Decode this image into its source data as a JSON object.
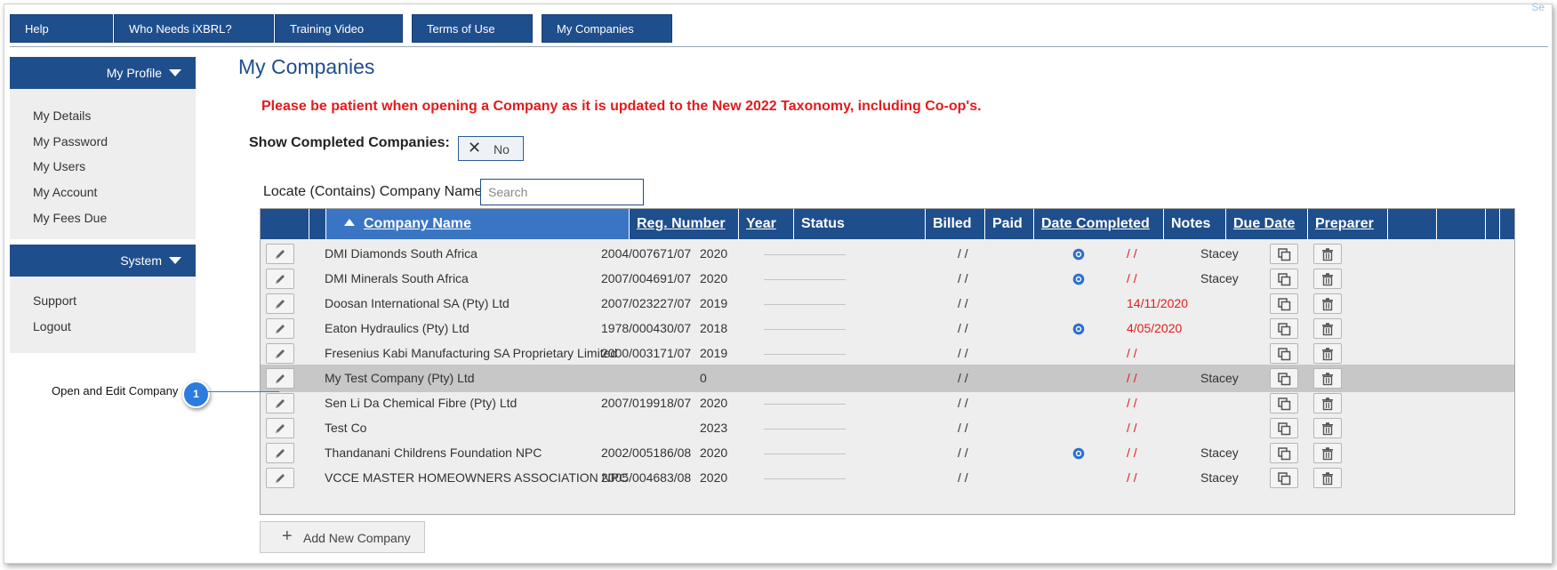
{
  "top_nav": [
    "Help",
    "Who Needs iXBRL?",
    "Training Video",
    "Terms of Use",
    "My Companies"
  ],
  "corner_text": "Se",
  "sidebar": {
    "profile_header": "My Profile",
    "profile_items": [
      "My Details",
      "My Password",
      "My Users",
      "My Account",
      "My Fees Due"
    ],
    "system_header": "System",
    "system_items": [
      "Support",
      "Logout"
    ]
  },
  "page_title": "My Companies",
  "warning": "Please be patient when opening a Company as it is updated to the New 2022 Taxonomy, including Co-op's.",
  "show_completed": {
    "label": "Show Completed Companies:",
    "value": "No"
  },
  "locate": {
    "label": "Locate (Contains) Company Name:",
    "placeholder": "Search"
  },
  "table": {
    "headers": {
      "company_name": "Company Name",
      "reg_number": "Reg. Number",
      "year": "Year",
      "status": "Status",
      "billed": "Billed",
      "paid": "Paid",
      "date_completed": "Date Completed",
      "notes": "Notes",
      "due_date": "Due Date",
      "preparer": "Preparer"
    },
    "rows": [
      {
        "name": "DMI Diamonds South Africa",
        "reg": "2004/007671/07",
        "year": "2020",
        "completed": "/ /",
        "notes": true,
        "due": "/ /",
        "preparer": "Stacey"
      },
      {
        "name": "DMI Minerals South Africa",
        "reg": "2007/004691/07",
        "year": "2020",
        "completed": "/ /",
        "notes": true,
        "due": "/ /",
        "preparer": "Stacey"
      },
      {
        "name": "Doosan International SA (Pty) Ltd",
        "reg": "2007/023227/07",
        "year": "2019",
        "completed": "/ /",
        "notes": false,
        "due": "14/11/2020",
        "preparer": ""
      },
      {
        "name": "Eaton Hydraulics (Pty) Ltd",
        "reg": "1978/000430/07",
        "year": "2018",
        "completed": "/ /",
        "notes": true,
        "due": "4/05/2020",
        "preparer": ""
      },
      {
        "name": "Fresenius Kabi Manufacturing SA Proprietary Limited",
        "reg": "2000/003171/07",
        "year": "2019",
        "completed": "/ /",
        "notes": false,
        "due": "/ /",
        "preparer": ""
      },
      {
        "name": "My Test Company (Pty) Ltd",
        "reg": "",
        "year": "0",
        "completed": "/ /",
        "notes": false,
        "due": "/ /",
        "preparer": "Stacey",
        "selected": true
      },
      {
        "name": "Sen Li Da Chemical Fibre (Pty) Ltd",
        "reg": "2007/019918/07",
        "year": "2020",
        "completed": "/ /",
        "notes": false,
        "due": "/ /",
        "preparer": ""
      },
      {
        "name": "Test Co",
        "reg": "",
        "year": "2023",
        "completed": "/ /",
        "notes": false,
        "due": "/ /",
        "preparer": ""
      },
      {
        "name": "Thandanani Childrens Foundation NPC",
        "reg": "2002/005186/08",
        "year": "2020",
        "completed": "/ /",
        "notes": true,
        "due": "/ /",
        "preparer": "Stacey"
      },
      {
        "name": "VCCE MASTER HOMEOWNERS ASSOCIATION NPC",
        "reg": "2005/004683/08",
        "year": "2020",
        "completed": "/ /",
        "notes": false,
        "due": "/ /",
        "preparer": "Stacey"
      }
    ]
  },
  "add_button": "Add New Company",
  "callout": {
    "number": "1",
    "label": "Open and Edit Company"
  },
  "colors": {
    "nav_blue": "#1f4e8c",
    "header_active": "#3a75c4",
    "warning_red": "#e31b1b",
    "callout_blue": "#2b7be0"
  },
  "icons": {
    "edit": "pencil-icon",
    "copy": "copy-icon",
    "delete": "trash-icon",
    "notes": "notes-icon",
    "sort": "sort-asc-icon"
  }
}
